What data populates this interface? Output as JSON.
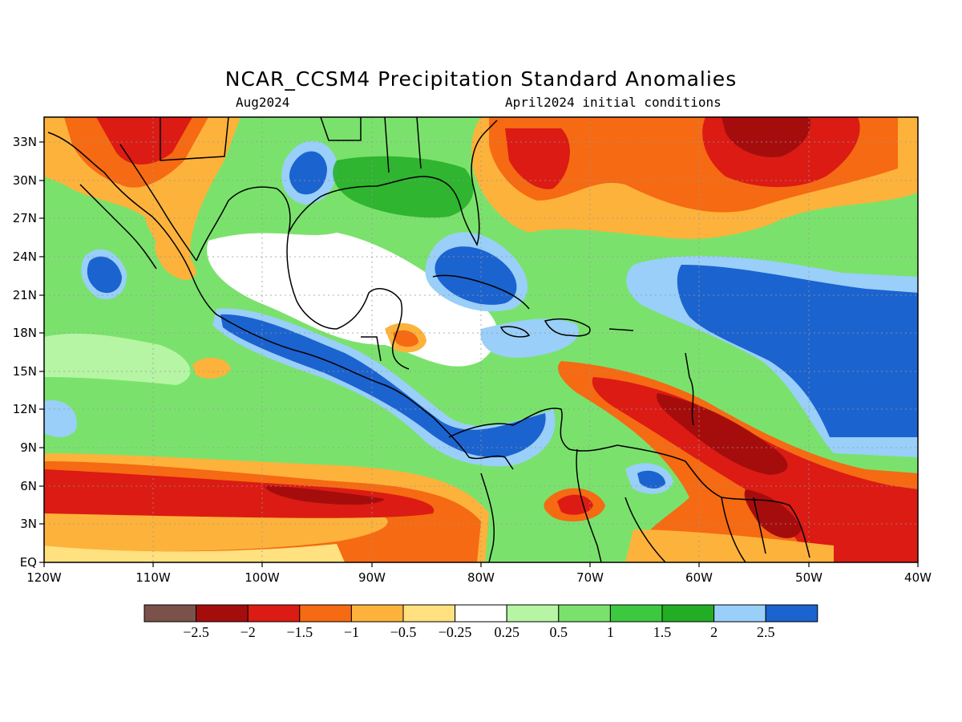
{
  "title": "NCAR_CCSM4 Precipitation Standard Anomalies",
  "valid_month": "Aug2024",
  "init_conditions": "April2024 initial conditions",
  "map": {
    "lon_range": [
      -120,
      -40
    ],
    "lat_range": [
      0,
      35
    ],
    "lat_ticks": [
      "33N",
      "30N",
      "27N",
      "24N",
      "21N",
      "18N",
      "15N",
      "12N",
      "9N",
      "6N",
      "3N",
      "EQ"
    ],
    "lon_ticks": [
      "120W",
      "110W",
      "100W",
      "90W",
      "80W",
      "70W",
      "60W",
      "50W",
      "40W"
    ]
  },
  "colorbar": {
    "colors": [
      "#7a524a",
      "#a50d0d",
      "#db1b14",
      "#f56a12",
      "#fdb23b",
      "#ffe17f",
      "#ffffff",
      "#b6f5a4",
      "#7ae26c",
      "#3cc940",
      "#22ad24",
      "#99cff8",
      "#1b63cf"
    ],
    "labels": [
      "−2.5",
      "−2",
      "−1.5",
      "−1",
      "−0.5",
      "−0.25",
      "0.25",
      "0.5",
      "1",
      "1.5",
      "2",
      "2.5"
    ]
  }
}
